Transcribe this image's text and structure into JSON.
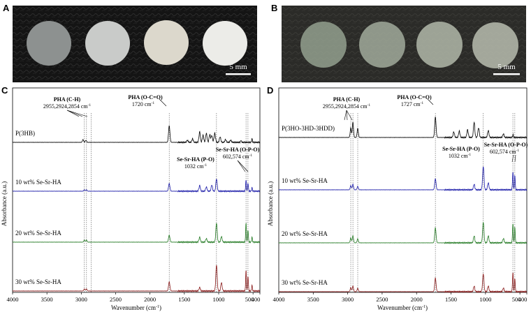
{
  "panels": {
    "A": {
      "letter": "A",
      "scale_label": "5 mm",
      "disc_colors": [
        "#8d9190",
        "#c9cbc9",
        "#dcd8cc",
        "#ecece8"
      ],
      "background_color": "#141414"
    },
    "B": {
      "letter": "B",
      "scale_label": "5 mm",
      "disc_colors": [
        "#9aa895",
        "#a9b3a2",
        "#b1b8a9",
        "#b8bdaf"
      ],
      "background_color": "#2b2b28"
    },
    "C": {
      "letter": "C",
      "annotations": {
        "pha_ch_title": "PHA (C-H)",
        "pha_ch_values": "2955,2924,2854 cm",
        "pha_co_title": "PHA (O-C=O)",
        "pha_co_value": "1720 cm",
        "po_title": "Se-Sr-HA (P-O)",
        "po_value": "1032 cm",
        "opo_title": "Se-Sr-HA (O-P-O)",
        "opo_value": "602,574 cm",
        "superscript": "-1"
      }
    },
    "D": {
      "letter": "D",
      "annotations": {
        "pha_ch_title": "PHA (C-H)",
        "pha_ch_values": "2955,2924,2854 cm",
        "pha_co_title": "PHA (O-C=O)",
        "pha_co_value": "1727 cm",
        "po_title": "Se-Sr-HA (P-O)",
        "po_value": "1032 cm",
        "opo_title": "Se-Sr-HA (O-P-O)",
        "opo_value": "602,574 cm",
        "superscript": "-1"
      }
    }
  },
  "chart_data": [
    {
      "type": "line",
      "panel": "C",
      "xlabel": "Wavenumber (cm",
      "xlabel_sup": "-1",
      "xlabel_end": ")",
      "ylabel": "Absorbance (a.u.)",
      "xlim": [
        4000,
        400
      ],
      "x_ticks": [
        "4000",
        "3500",
        "3000",
        "2500",
        "2000",
        "1500",
        "1000",
        "500",
        "400"
      ],
      "reference_lines": [
        2955,
        2924,
        2854,
        1720,
        1032,
        602,
        574
      ],
      "series": [
        {
          "name": "P(3HB)",
          "color": "#000000",
          "peaks": [
            [
              2975,
              4
            ],
            [
              2933,
              3
            ],
            [
              1720,
              24
            ],
            [
              1455,
              3
            ],
            [
              1380,
              5
            ],
            [
              1277,
              15
            ],
            [
              1228,
              10
            ],
            [
              1180,
              13
            ],
            [
              1130,
              11
            ],
            [
              1100,
              10
            ],
            [
              1057,
              13
            ],
            [
              980,
              8
            ],
            [
              900,
              4
            ],
            [
              825,
              3
            ],
            [
              675,
              3
            ],
            [
              515,
              5
            ]
          ]
        },
        {
          "name": "10 wt% Se-Sr-HA",
          "color": "#1a1aa8",
          "peaks": [
            [
              2955,
              2
            ],
            [
              2924,
              2
            ],
            [
              1720,
              11
            ],
            [
              1277,
              8
            ],
            [
              1180,
              6
            ],
            [
              1100,
              9
            ],
            [
              1032,
              18
            ],
            [
              602,
              16
            ],
            [
              574,
              12
            ],
            [
              515,
              5
            ]
          ]
        },
        {
          "name": "20 wt% Se-Sr-HA",
          "color": "#237a23",
          "peaks": [
            [
              2955,
              3
            ],
            [
              2924,
              3
            ],
            [
              1720,
              10
            ],
            [
              1277,
              7
            ],
            [
              1180,
              5
            ],
            [
              1032,
              28
            ],
            [
              960,
              8
            ],
            [
              602,
              28
            ],
            [
              574,
              18
            ],
            [
              515,
              7
            ]
          ]
        },
        {
          "name": "30 wt% Se-Sr-HA",
          "color": "#8a1a1a",
          "peaks": [
            [
              2955,
              3
            ],
            [
              2924,
              3
            ],
            [
              1720,
              13
            ],
            [
              1277,
              5
            ],
            [
              1032,
              38
            ],
            [
              960,
              12
            ],
            [
              602,
              30
            ],
            [
              574,
              22
            ],
            [
              515,
              8
            ]
          ]
        }
      ]
    },
    {
      "type": "line",
      "panel": "D",
      "xlabel": "Wavenumber (cm",
      "xlabel_sup": "-1",
      "xlabel_end": ")",
      "ylabel": "Absorbance (a.u.)",
      "xlim": [
        4000,
        400
      ],
      "x_ticks": [
        "4000",
        "3500",
        "3000",
        "2500",
        "2000",
        "1500",
        "1000",
        "500",
        "400"
      ],
      "reference_lines": [
        2955,
        2924,
        2854,
        1727,
        1032,
        602,
        574
      ],
      "series": [
        {
          "name": "P(3HO-3HD-3HDD)",
          "color": "#000000",
          "peaks": [
            [
              2955,
              14
            ],
            [
              2924,
              22
            ],
            [
              2854,
              13
            ],
            [
              1727,
              30
            ],
            [
              1460,
              8
            ],
            [
              1380,
              9
            ],
            [
              1260,
              11
            ],
            [
              1165,
              22
            ],
            [
              1100,
              14
            ],
            [
              960,
              10
            ],
            [
              740,
              5
            ],
            [
              600,
              4
            ]
          ]
        },
        {
          "name": "10 wt% Se-Sr-HA",
          "color": "#1a1aa8",
          "peaks": [
            [
              2955,
              6
            ],
            [
              2924,
              8
            ],
            [
              2854,
              5
            ],
            [
              1727,
              16
            ],
            [
              1165,
              8
            ],
            [
              1032,
              34
            ],
            [
              960,
              10
            ],
            [
              602,
              26
            ],
            [
              574,
              22
            ]
          ]
        },
        {
          "name": "20 wt% Se-Sr-HA",
          "color": "#237a23",
          "peaks": [
            [
              2955,
              7
            ],
            [
              2924,
              10
            ],
            [
              2854,
              6
            ],
            [
              1727,
              22
            ],
            [
              1165,
              10
            ],
            [
              1032,
              30
            ],
            [
              960,
              10
            ],
            [
              740,
              6
            ],
            [
              602,
              28
            ],
            [
              574,
              24
            ]
          ]
        },
        {
          "name": "30 wt% Se-Sr-HA",
          "color": "#8a1a1a",
          "peaks": [
            [
              2955,
              6
            ],
            [
              2924,
              8
            ],
            [
              2854,
              5
            ],
            [
              1727,
              20
            ],
            [
              1165,
              8
            ],
            [
              1032,
              26
            ],
            [
              960,
              8
            ],
            [
              740,
              5
            ],
            [
              602,
              28
            ],
            [
              574,
              20
            ]
          ]
        }
      ]
    }
  ]
}
